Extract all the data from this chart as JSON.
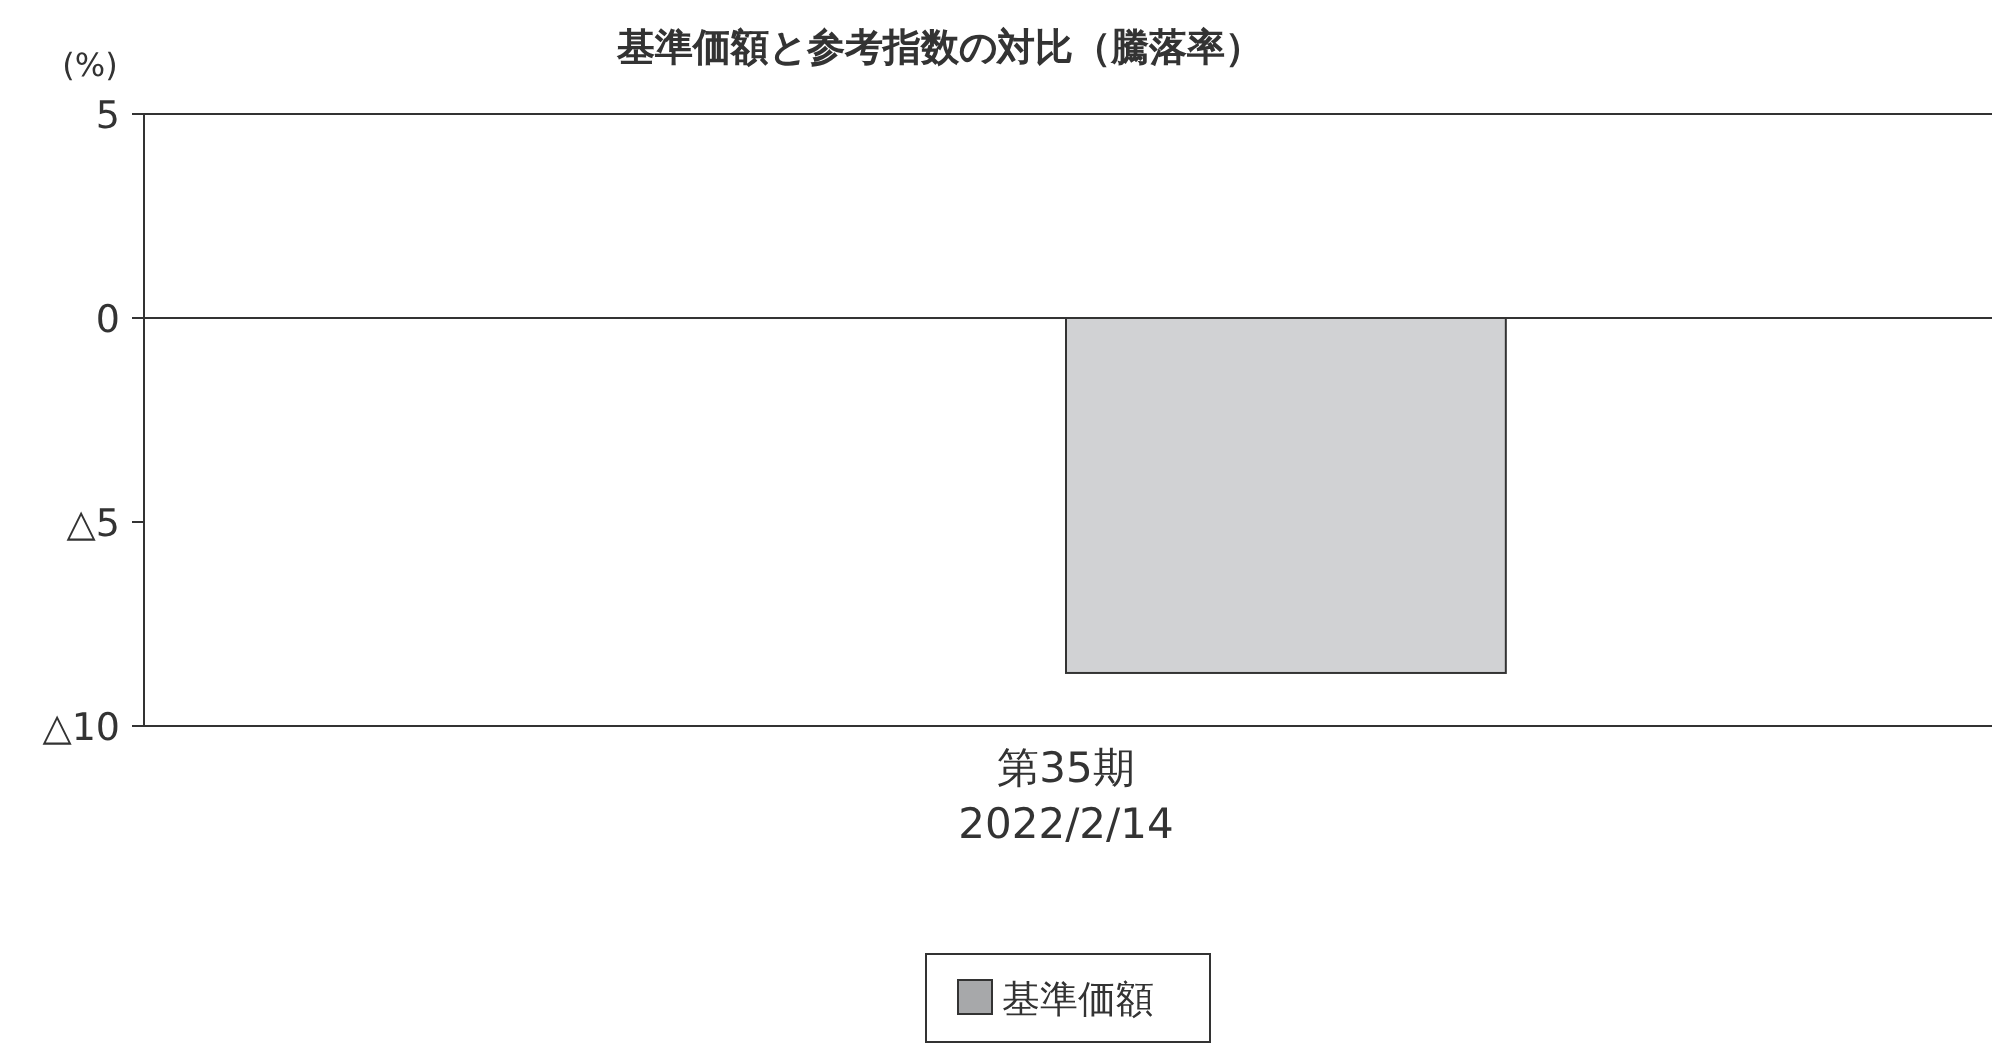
{
  "chart_data": {
    "type": "bar",
    "title": "基準価額と参考指数の対比（騰落率）",
    "ylabel": "(%)",
    "categories": [
      "第35期\n2022/2/14"
    ],
    "series": [
      {
        "name": "基準価額",
        "color": "#a7a8aa",
        "values": [
          0.0
        ]
      },
      {
        "color": "#d1d2d4",
        "values": [
          -8.7
        ]
      }
    ],
    "ylim": [
      -10,
      5
    ],
    "yticks": [
      5,
      0,
      {
        "value": -5,
        "label": "△5"
      },
      {
        "value": -10,
        "label": "△10"
      }
    ],
    "legend": "bottom"
  }
}
